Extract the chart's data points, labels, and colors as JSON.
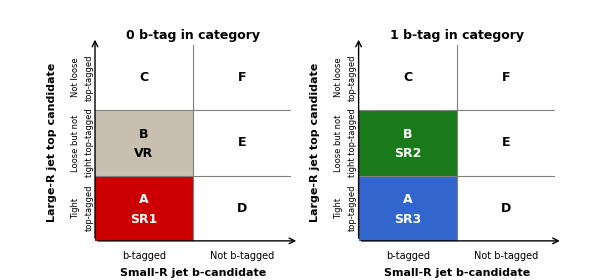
{
  "title_left": "0 b-tag in category",
  "title_right": "1 b-tag in category",
  "xlabel": "Small-R jet b-candidate",
  "ylabel": "Large-R jet top candidate",
  "xtick_labels": [
    "b-tagged",
    "Not b-tagged"
  ],
  "ytick_rows": [
    [
      "Tight",
      "top-tagged"
    ],
    [
      "Loose but not",
      "tight top-tagged"
    ],
    [
      "Not loose",
      "top-tagged"
    ]
  ],
  "cells_left": [
    {
      "row": 2,
      "col": 0,
      "label": "C",
      "sublabel": "",
      "color": "white"
    },
    {
      "row": 2,
      "col": 1,
      "label": "F",
      "sublabel": "",
      "color": "white"
    },
    {
      "row": 1,
      "col": 0,
      "label": "B",
      "sublabel": "VR",
      "color": "#c8bfb0"
    },
    {
      "row": 1,
      "col": 1,
      "label": "E",
      "sublabel": "",
      "color": "white"
    },
    {
      "row": 0,
      "col": 0,
      "label": "A",
      "sublabel": "SR1",
      "color": "#cc0000"
    },
    {
      "row": 0,
      "col": 1,
      "label": "D",
      "sublabel": "",
      "color": "white"
    }
  ],
  "cells_right": [
    {
      "row": 2,
      "col": 0,
      "label": "C",
      "sublabel": "",
      "color": "white"
    },
    {
      "row": 2,
      "col": 1,
      "label": "F",
      "sublabel": "",
      "color": "white"
    },
    {
      "row": 1,
      "col": 0,
      "label": "B",
      "sublabel": "SR2",
      "color": "#1a7a1a"
    },
    {
      "row": 1,
      "col": 1,
      "label": "E",
      "sublabel": "",
      "color": "white"
    },
    {
      "row": 0,
      "col": 0,
      "label": "A",
      "sublabel": "SR3",
      "color": "#3366cc"
    },
    {
      "row": 0,
      "col": 1,
      "label": "D",
      "sublabel": "",
      "color": "white"
    }
  ],
  "col_boundaries": [
    0,
    0.5,
    1.0
  ],
  "row_boundaries": [
    0,
    0.333,
    0.666,
    1.0
  ],
  "label_fontsize": 9,
  "sublabel_fontsize": 9,
  "title_fontsize": 9,
  "axis_label_fontsize": 8,
  "tick_fontsize": 7,
  "ytick_fontsize": 6
}
